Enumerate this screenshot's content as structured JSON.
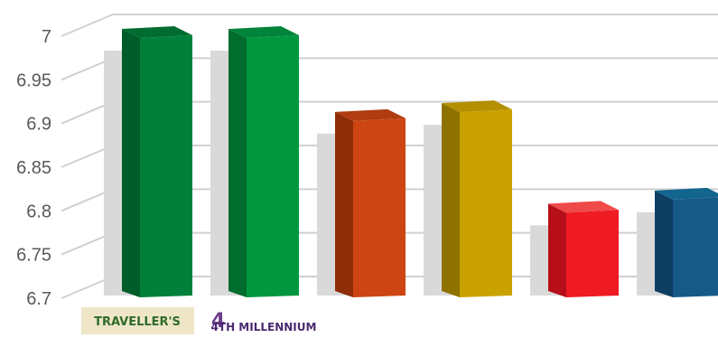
{
  "chart_data": {
    "type": "bar",
    "style": "3d",
    "title": "",
    "xlabel": "",
    "ylabel": "",
    "ylim": [
      6.7,
      7.0
    ],
    "y_ticks": [
      "6.7",
      "6.75",
      "6.8",
      "6.85",
      "6.9",
      "6.95",
      "7"
    ],
    "grid": true,
    "legend": "none",
    "categories": [
      {
        "label": "TRAVELLER'S",
        "logo": "travellers-logo"
      },
      {
        "label": "4TH MILLENNIUM",
        "logo": "4th-millennium-logo"
      },
      {
        "label": "",
        "logo": ""
      },
      {
        "label": "",
        "logo": ""
      },
      {
        "label": "",
        "logo": ""
      },
      {
        "label": "",
        "logo": ""
      }
    ],
    "values": [
      7.0,
      7.0,
      6.905,
      6.915,
      6.8,
      6.815
    ],
    "colors": [
      {
        "front": "#00803a",
        "side": "#005c28",
        "top": "#006c30"
      },
      {
        "front": "#00973f",
        "side": "#006c2d",
        "top": "#00843a"
      },
      {
        "front": "#cc4512",
        "side": "#8f2d08",
        "top": "#b03c10"
      },
      {
        "front": "#caa200",
        "side": "#8e7200",
        "top": "#b48f00"
      },
      {
        "front": "#ef1b23",
        "side": "#b60f19",
        "top": "#f04a48"
      },
      {
        "front": "#165a88",
        "side": "#0e3f63",
        "top": "#11658f"
      }
    ]
  }
}
